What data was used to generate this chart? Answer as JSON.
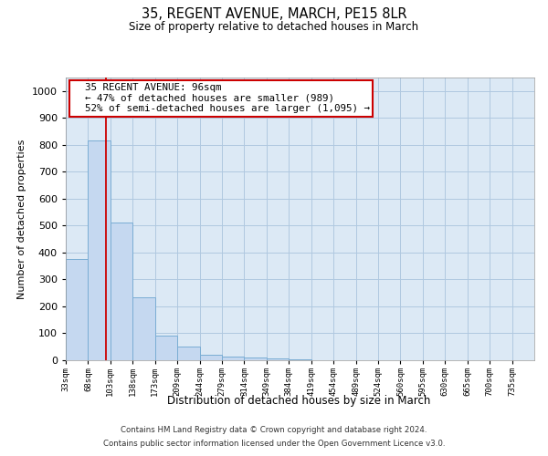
{
  "title1": "35, REGENT AVENUE, MARCH, PE15 8LR",
  "title2": "Size of property relative to detached houses in March",
  "xlabel": "Distribution of detached houses by size in March",
  "ylabel": "Number of detached properties",
  "bin_labels": [
    "33sqm",
    "68sqm",
    "103sqm",
    "138sqm",
    "173sqm",
    "209sqm",
    "244sqm",
    "279sqm",
    "314sqm",
    "349sqm",
    "384sqm",
    "419sqm",
    "454sqm",
    "489sqm",
    "524sqm",
    "560sqm",
    "595sqm",
    "630sqm",
    "665sqm",
    "700sqm",
    "735sqm"
  ],
  "bar_values": [
    375,
    815,
    510,
    235,
    90,
    50,
    20,
    15,
    10,
    8,
    5,
    0,
    0,
    0,
    0,
    0,
    0,
    0,
    0,
    0,
    0
  ],
  "bar_color": "#c5d8f0",
  "bar_edge_color": "#7aadd4",
  "red_line_x": 1.795,
  "annotation_title": "35 REGENT AVENUE: 96sqm",
  "annotation_line1": "← 47% of detached houses are smaller (989)",
  "annotation_line2": "52% of semi-detached houses are larger (1,095) →",
  "annotation_box_color": "#ffffff",
  "annotation_box_edge": "#cc0000",
  "footnote1": "Contains HM Land Registry data © Crown copyright and database right 2024.",
  "footnote2": "Contains public sector information licensed under the Open Government Licence v3.0.",
  "ylim": [
    0,
    1050
  ],
  "yticks": [
    0,
    100,
    200,
    300,
    400,
    500,
    600,
    700,
    800,
    900,
    1000
  ],
  "background_color": "#ffffff",
  "plot_bg_color": "#dce9f5",
  "grid_color": "#b0c8e0"
}
